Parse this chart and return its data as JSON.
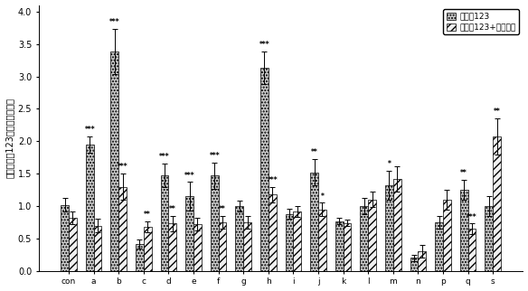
{
  "categories": [
    "con",
    "a",
    "b",
    "c",
    "d",
    "e",
    "f",
    "g",
    "h",
    "i",
    "j",
    "k",
    "l",
    "m",
    "n",
    "p",
    "q",
    "s"
  ],
  "bar1_values": [
    1.02,
    1.95,
    3.38,
    0.42,
    1.48,
    1.15,
    1.47,
    1.0,
    3.13,
    0.88,
    1.52,
    0.77,
    1.0,
    1.32,
    0.2,
    0.75,
    1.25,
    1.0
  ],
  "bar2_values": [
    0.82,
    0.7,
    1.3,
    0.68,
    0.73,
    0.72,
    0.75,
    0.75,
    1.18,
    0.92,
    0.95,
    0.74,
    1.1,
    1.42,
    0.3,
    1.1,
    0.65,
    2.07
  ],
  "bar1_errors": [
    0.1,
    0.13,
    0.35,
    0.07,
    0.18,
    0.22,
    0.2,
    0.08,
    0.25,
    0.08,
    0.2,
    0.05,
    0.12,
    0.22,
    0.05,
    0.1,
    0.15,
    0.15
  ],
  "bar2_errors": [
    0.1,
    0.1,
    0.2,
    0.08,
    0.12,
    0.1,
    0.1,
    0.1,
    0.12,
    0.08,
    0.1,
    0.05,
    0.12,
    0.2,
    0.1,
    0.15,
    0.08,
    0.28
  ],
  "bar1_color": "#c8c8c8",
  "bar2_color": "#f0f0f0",
  "bar1_hatch": ".....",
  "bar2_hatch": "////",
  "bar1_edgecolor": "#000000",
  "bar2_edgecolor": "#000000",
  "ylabel_chars": [
    "胆",
    "内",
    "罗",
    "丹",
    "明",
    "1",
    "2",
    "3",
    "的",
    "相",
    "对",
    "荆",
    "光",
    "强",
    "度"
  ],
  "ylabel_text": "胆内罗丹明123的相对荆光强度",
  "ylim": [
    0,
    4.1
  ],
  "yticks": [
    0,
    0.5,
    1.0,
    1.5,
    2.0,
    2.5,
    3.0,
    3.5,
    4.0
  ],
  "legend_label1": "罗丹明123",
  "legend_label2": "罗丹明123+维拉帕米",
  "annotations_bar1": [
    "",
    "***",
    "***",
    "",
    "***",
    "***",
    "***",
    "",
    "***",
    "",
    "**",
    "",
    "",
    "*",
    "",
    "",
    "**",
    ""
  ],
  "annotations_bar2": [
    "",
    "",
    "***",
    "**",
    "**",
    "",
    "**",
    "",
    "***",
    "",
    "*",
    "",
    "",
    "",
    "",
    "",
    "***",
    "**"
  ],
  "ann_bar2_pos": [
    "",
    "",
    "***",
    "**",
    "**",
    "",
    "**",
    "",
    "***",
    "",
    "*",
    "",
    "",
    "",
    "",
    "",
    "***",
    "**"
  ],
  "bar_width": 0.32,
  "figsize": [
    5.84,
    3.22
  ],
  "dpi": 100
}
